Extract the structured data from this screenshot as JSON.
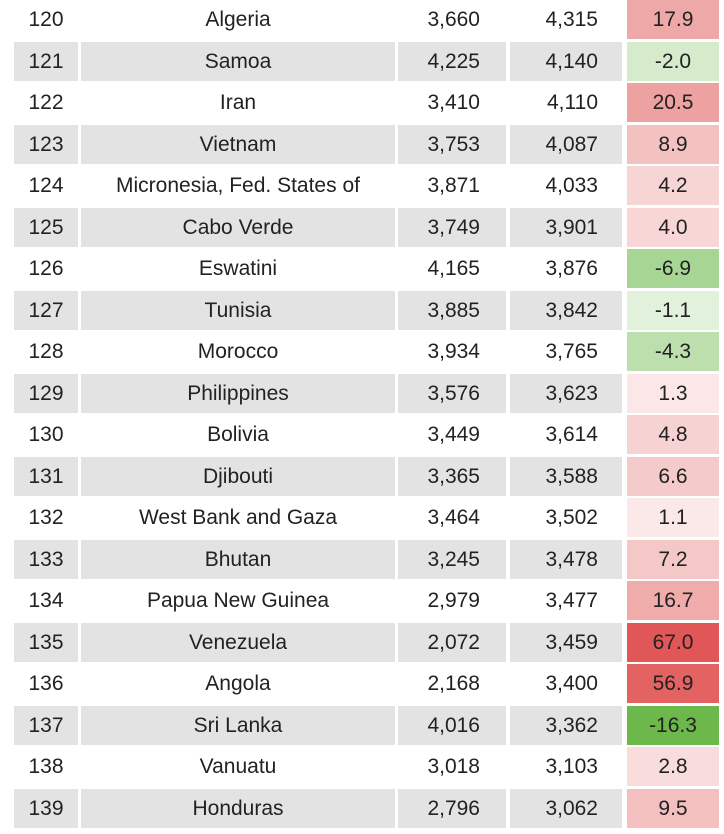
{
  "table": {
    "rows": [
      [
        "120",
        "Algeria",
        "3,660",
        "4,315",
        "17.9"
      ],
      [
        "121",
        "Samoa",
        "4,225",
        "4,140",
        "-2.0"
      ],
      [
        "122",
        "Iran",
        "3,410",
        "4,110",
        "20.5"
      ],
      [
        "123",
        "Vietnam",
        "3,753",
        "4,087",
        "8.9"
      ],
      [
        "124",
        "Micronesia, Fed. States of",
        "3,871",
        "4,033",
        "4.2"
      ],
      [
        "125",
        "Cabo Verde",
        "3,749",
        "3,901",
        "4.0"
      ],
      [
        "126",
        "Eswatini",
        "4,165",
        "3,876",
        "-6.9"
      ],
      [
        "127",
        "Tunisia",
        "3,885",
        "3,842",
        "-1.1"
      ],
      [
        "128",
        "Morocco",
        "3,934",
        "3,765",
        "-4.3"
      ],
      [
        "129",
        "Philippines",
        "3,576",
        "3,623",
        "1.3"
      ],
      [
        "130",
        "Bolivia",
        "3,449",
        "3,614",
        "4.8"
      ],
      [
        "131",
        "Djibouti",
        "3,365",
        "3,588",
        "6.6"
      ],
      [
        "132",
        "West Bank and Gaza",
        "3,464",
        "3,502",
        "1.1"
      ],
      [
        "133",
        "Bhutan",
        "3,245",
        "3,478",
        "7.2"
      ],
      [
        "134",
        "Papua New Guinea",
        "2,979",
        "3,477",
        "16.7"
      ],
      [
        "135",
        "Venezuela",
        "2,072",
        "3,459",
        "67.0"
      ],
      [
        "136",
        "Angola",
        "2,168",
        "3,400",
        "56.9"
      ],
      [
        "137",
        "Sri Lanka",
        "4,016",
        "3,362",
        "-16.3"
      ],
      [
        "138",
        "Vanuatu",
        "3,018",
        "3,103",
        "2.8"
      ],
      [
        "139",
        "Honduras",
        "2,796",
        "3,062",
        "9.5"
      ]
    ]
  }
}
